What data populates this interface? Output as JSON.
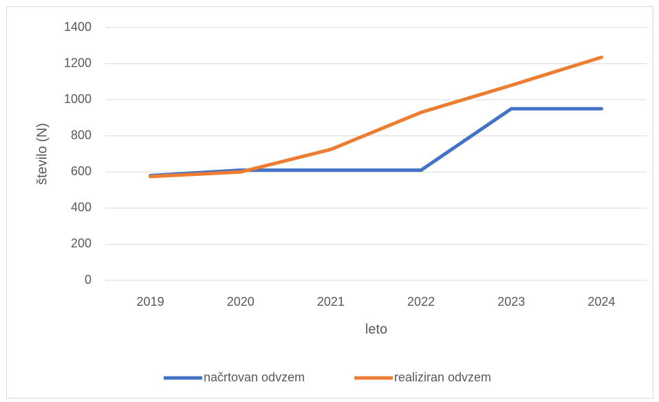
{
  "chart_data": {
    "type": "line",
    "xlabel": "leto",
    "ylabel": "število (N)",
    "categories": [
      "2019",
      "2020",
      "2021",
      "2022",
      "2023",
      "2024"
    ],
    "series": [
      {
        "name": "načrtovan odvzem",
        "color": "#4472c4",
        "values": [
          580,
          610,
          610,
          610,
          950,
          950
        ]
      },
      {
        "name": "realiziran odvzem",
        "color": "#ed7d31",
        "values": [
          575,
          600,
          725,
          930,
          1080,
          1235
        ]
      }
    ],
    "ylim": [
      0,
      1400
    ],
    "yticks": [
      0,
      200,
      400,
      600,
      800,
      1000,
      1200,
      1400
    ],
    "grid": true,
    "legend": "bottom"
  }
}
